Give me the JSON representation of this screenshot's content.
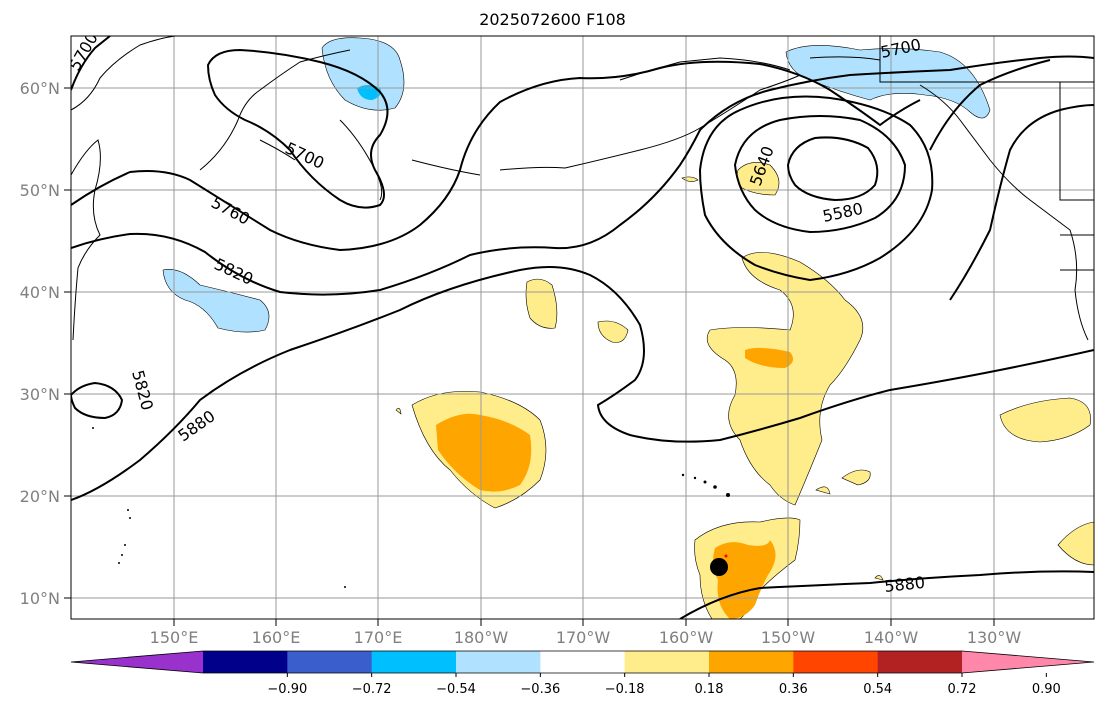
{
  "title": "2025072600 F108",
  "map": {
    "lat_ticks": [
      "60°N",
      "50°N",
      "40°N",
      "30°N",
      "20°N",
      "10°N"
    ],
    "lon_ticks": [
      "150°E",
      "160°E",
      "170°E",
      "180°W",
      "170°W",
      "160°W",
      "150°W",
      "140°W",
      "130°W"
    ],
    "contour_labels": [
      "5700",
      "5700",
      "5700",
      "5760",
      "5820",
      "5820",
      "5880",
      "5880",
      "5640",
      "5580"
    ],
    "storm_marker": "black dot"
  },
  "colorbar": {
    "colors": [
      "#9932cc",
      "#00008b",
      "#3a5fcd",
      "#00bfff",
      "#b0e2ff",
      "#ffffff",
      "#ffec8b",
      "#ffa500",
      "#ff4500",
      "#b22222",
      "#ff88aa"
    ],
    "labels": [
      "−0.90",
      "−0.72",
      "−0.54",
      "−0.36",
      "−0.18",
      "0.18",
      "0.36",
      "0.54",
      "0.72",
      "0.90"
    ]
  }
}
